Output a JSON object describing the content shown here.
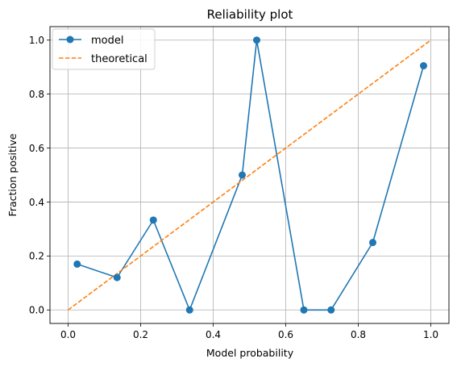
{
  "chart_data": {
    "type": "line",
    "title": "Reliability plot",
    "xlabel": "Model probability",
    "ylabel": "Fraction positive",
    "xlim": [
      -0.05,
      1.05
    ],
    "ylim": [
      -0.05,
      1.05
    ],
    "grid": true,
    "legend_position": "top-left",
    "x_ticks": [
      0.0,
      0.2,
      0.4,
      0.6,
      0.8,
      1.0
    ],
    "x_tick_labels": [
      "0.0",
      "0.2",
      "0.4",
      "0.6",
      "0.8",
      "1.0"
    ],
    "y_ticks": [
      0.0,
      0.2,
      0.4,
      0.6,
      0.8,
      1.0
    ],
    "y_tick_labels": [
      "0.0",
      "0.2",
      "0.4",
      "0.6",
      "0.8",
      "1.0"
    ],
    "series": [
      {
        "name": "model",
        "style": "line-marker",
        "color": "#1f77b4",
        "x": [
          0.025,
          0.135,
          0.235,
          0.335,
          0.48,
          0.52,
          0.65,
          0.725,
          0.84,
          0.98
        ],
        "y": [
          0.17,
          0.12,
          0.333,
          0.0,
          0.5,
          1.0,
          0.0,
          0.0,
          0.25,
          0.905
        ]
      },
      {
        "name": "theoretical",
        "style": "dashed",
        "color": "#ff7f0e",
        "x": [
          0.0,
          1.0
        ],
        "y": [
          0.0,
          1.0
        ]
      }
    ]
  }
}
